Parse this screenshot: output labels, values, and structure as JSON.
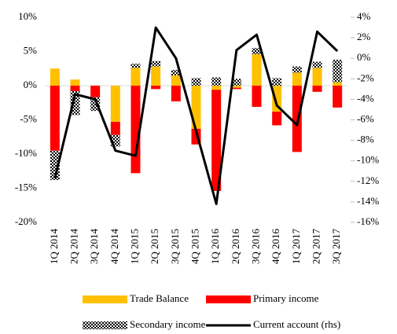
{
  "chart_data": {
    "type": "bar",
    "stacked": true,
    "categories": [
      "1Q 2014",
      "2Q 2014",
      "3Q 2014",
      "4Q 2014",
      "1Q 2015",
      "2Q 2015",
      "3Q 2015",
      "4Q 2015",
      "1Q 2016",
      "2Q 2016",
      "3Q 2016",
      "4Q 2016",
      "1Q 2017",
      "2Q 2017",
      "3Q 2017"
    ],
    "series": [
      {
        "name": "Trade Balance",
        "color": "#ffc000",
        "values": [
          2.5,
          0.9,
          0,
          -5.3,
          2.6,
          2.8,
          1.5,
          -6.3,
          -0.6,
          -0.3,
          4.6,
          -3.8,
          1.9,
          2.6,
          0.5
        ]
      },
      {
        "name": "Primary income",
        "color": "#ff0000",
        "values": [
          -9.5,
          -0.8,
          -1.7,
          -1.9,
          -12.8,
          -0.5,
          -2.3,
          -2.3,
          -14.8,
          -0.2,
          -3.1,
          -2.0,
          -9.7,
          -0.9,
          -3.2
        ]
      },
      {
        "name": "Secondary income",
        "color": "#000000",
        "pattern": "checker",
        "values": [
          -4.3,
          -3.5,
          -2.0,
          -1.7,
          0.6,
          0.8,
          0.8,
          1.1,
          1.2,
          1.0,
          0.9,
          1.1,
          0.9,
          0.9,
          3.3
        ]
      },
      {
        "name": "Current account (rhs)",
        "color": "#000000",
        "type": "line",
        "axis": "y2",
        "values": [
          -11.7,
          -3.5,
          -4.0,
          -9.0,
          -9.5,
          3.0,
          0.0,
          -7.1,
          -14.2,
          0.8,
          2.3,
          -4.6,
          -6.5,
          2.6,
          0.7
        ]
      }
    ],
    "ylim": [
      -20,
      10
    ],
    "yticks": [
      {
        "value": -20,
        "label": "-20%"
      },
      {
        "value": -15,
        "label": "-15%"
      },
      {
        "value": -10,
        "label": "-10%"
      },
      {
        "value": -5,
        "label": "-5%"
      },
      {
        "value": 0,
        "label": "0%"
      },
      {
        "value": 5,
        "label": "5%"
      },
      {
        "value": 10,
        "label": "10%"
      }
    ],
    "y2lim": [
      -16,
      4
    ],
    "y2ticks": [
      {
        "value": -16,
        "label": "-16%"
      },
      {
        "value": -14,
        "label": "-14%"
      },
      {
        "value": -12,
        "label": "-12%"
      },
      {
        "value": -10,
        "label": "-10%"
      },
      {
        "value": -8,
        "label": "-8%"
      },
      {
        "value": -6,
        "label": "-6%"
      },
      {
        "value": -4,
        "label": "-4%"
      },
      {
        "value": -2,
        "label": "-2%"
      },
      {
        "value": 0,
        "label": "0%"
      },
      {
        "value": 2,
        "label": "2%"
      },
      {
        "value": 4,
        "label": "4%"
      }
    ],
    "grid": false
  }
}
